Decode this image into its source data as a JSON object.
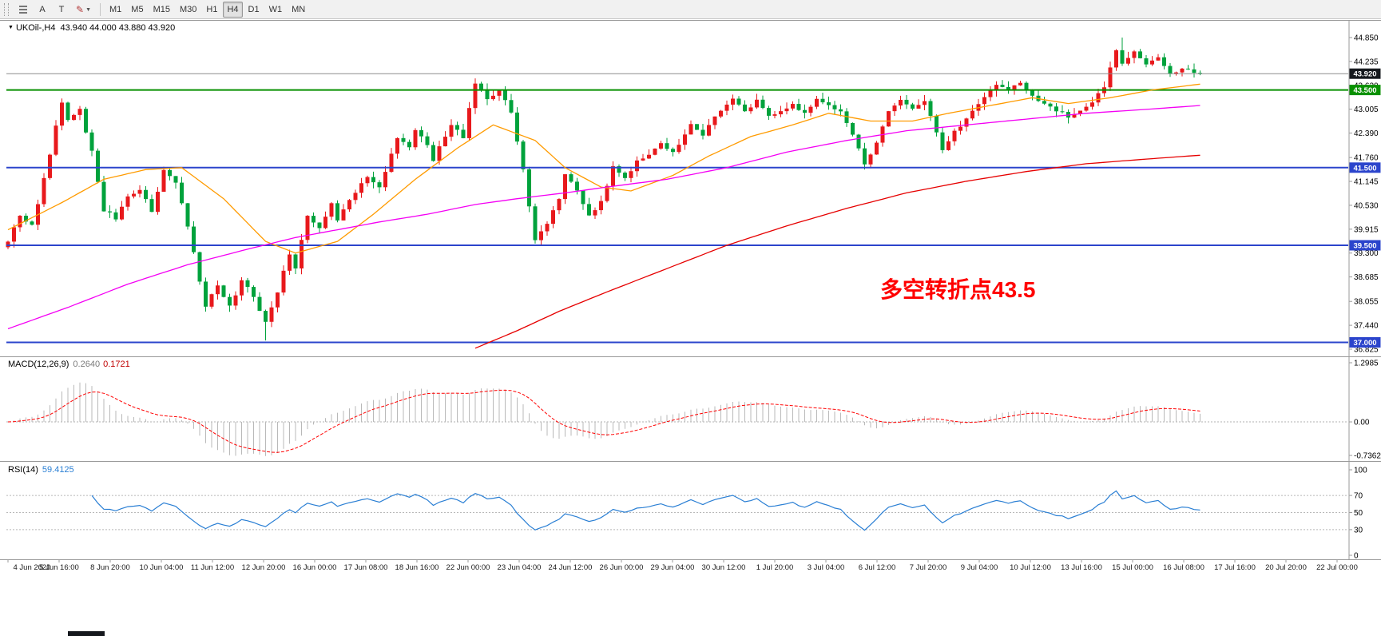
{
  "toolbar": {
    "buttons": {
      "a": "A",
      "t": "T"
    },
    "timeframes": [
      "M1",
      "M5",
      "M15",
      "M30",
      "H1",
      "H4",
      "D1",
      "W1",
      "MN"
    ],
    "active_timeframe": "H4"
  },
  "chart": {
    "title": "UKOil-,H4",
    "ohlc_text": "43.940 44.000 43.880 43.920",
    "annotation": {
      "text": "多空转折点43.5",
      "color": "#ff0000"
    }
  },
  "chart_data": {
    "type": "candlestick",
    "symbol": "UKOil",
    "timeframe": "H4",
    "current": {
      "open": 43.94,
      "high": 44.0,
      "low": 43.88,
      "close": 43.92
    },
    "colors": {
      "bull": "#e8191c",
      "bear": "#00a23c",
      "hist": "#b9b9b9",
      "macd_signal": "#ff0000",
      "rsi": "#2a7fd4"
    },
    "price_axis": {
      "ticks": [
        "44.850",
        "44.235",
        "43.620",
        "43.005",
        "42.390",
        "41.760",
        "41.145",
        "40.530",
        "39.915",
        "39.300",
        "38.685",
        "38.055",
        "37.440",
        "36.825"
      ]
    },
    "hlines": [
      {
        "price": 43.92,
        "color": "#8c8c8c",
        "width": 1,
        "badge": "43.920",
        "badge_bg": "#15181d"
      },
      {
        "price": 43.5,
        "color": "#089000",
        "width": 2,
        "badge": "43.500",
        "badge_bg": "#089000"
      },
      {
        "price": 41.5,
        "color": "#2b44cc",
        "width": 2,
        "badge": "41.500",
        "badge_bg": "#2b44cc"
      },
      {
        "price": 39.5,
        "color": "#2b44cc",
        "width": 2,
        "badge": "39.500",
        "badge_bg": "#2b44cc"
      },
      {
        "price": 37.0,
        "color": "#2b44cc",
        "width": 2,
        "badge": "37.000",
        "badge_bg": "#2b44cc"
      }
    ],
    "x_labels": [
      "4 Jun 2020",
      "5 Jun 16:00",
      "8 Jun 20:00",
      "10 Jun 04:00",
      "11 Jun 12:00",
      "12 Jun 20:00",
      "16 Jun 00:00",
      "17 Jun 08:00",
      "18 Jun 16:00",
      "22 Jun 00:00",
      "23 Jun 04:00",
      "24 Jun 12:00",
      "26 Jun 00:00",
      "29 Jun 04:00",
      "30 Jun 12:00",
      "1 Jul 20:00",
      "3 Jul 04:00",
      "6 Jul 12:00",
      "7 Jul 20:00",
      "9 Jul 04:00",
      "10 Jul 12:00",
      "13 Jul 16:00",
      "15 Jul 00:00",
      "16 Jul 08:00",
      "17 Jul 16:00",
      "20 Jul 20:00",
      "22 Jul 00:00"
    ],
    "n_candles": 200,
    "close_waypoints": [
      [
        0,
        39.6
      ],
      [
        2,
        40.3
      ],
      [
        4,
        40.0
      ],
      [
        6,
        41.2
      ],
      [
        9,
        43.2
      ],
      [
        10,
        42.7
      ],
      [
        12,
        43.0
      ],
      [
        14,
        41.9
      ],
      [
        16,
        40.4
      ],
      [
        18,
        40.2
      ],
      [
        20,
        40.8
      ],
      [
        22,
        40.9
      ],
      [
        24,
        40.4
      ],
      [
        26,
        41.4
      ],
      [
        28,
        41.1
      ],
      [
        29,
        40.6
      ],
      [
        31,
        39.3
      ],
      [
        33,
        37.9
      ],
      [
        35,
        38.5
      ],
      [
        37,
        37.9
      ],
      [
        39,
        38.6
      ],
      [
        41,
        38.2
      ],
      [
        43,
        37.5
      ],
      [
        45,
        38.3
      ],
      [
        47,
        39.3
      ],
      [
        48,
        38.9
      ],
      [
        50,
        40.3
      ],
      [
        52,
        39.9
      ],
      [
        54,
        40.6
      ],
      [
        55,
        40.1
      ],
      [
        57,
        40.7
      ],
      [
        60,
        41.3
      ],
      [
        62,
        41.0
      ],
      [
        65,
        42.3
      ],
      [
        67,
        42.0
      ],
      [
        68,
        42.5
      ],
      [
        70,
        42.1
      ],
      [
        71,
        41.7
      ],
      [
        74,
        42.6
      ],
      [
        76,
        42.3
      ],
      [
        78,
        43.7
      ],
      [
        80,
        43.3
      ],
      [
        82,
        43.5
      ],
      [
        84,
        42.9
      ],
      [
        86,
        41.5
      ],
      [
        88,
        39.6
      ],
      [
        90,
        40.1
      ],
      [
        92,
        40.7
      ],
      [
        93,
        41.3
      ],
      [
        95,
        40.9
      ],
      [
        97,
        40.3
      ],
      [
        99,
        40.6
      ],
      [
        101,
        41.5
      ],
      [
        103,
        41.2
      ],
      [
        105,
        41.7
      ],
      [
        107,
        41.8
      ],
      [
        109,
        42.1
      ],
      [
        111,
        41.9
      ],
      [
        114,
        42.6
      ],
      [
        116,
        42.3
      ],
      [
        118,
        42.8
      ],
      [
        121,
        43.3
      ],
      [
        123,
        43.0
      ],
      [
        125,
        43.2
      ],
      [
        127,
        42.8
      ],
      [
        129,
        43.0
      ],
      [
        131,
        43.1
      ],
      [
        133,
        42.9
      ],
      [
        135,
        43.3
      ],
      [
        137,
        43.1
      ],
      [
        139,
        42.9
      ],
      [
        141,
        42.3
      ],
      [
        143,
        41.6
      ],
      [
        145,
        42.1
      ],
      [
        147,
        43.0
      ],
      [
        149,
        43.2
      ],
      [
        151,
        43.0
      ],
      [
        153,
        43.2
      ],
      [
        156,
        42.0
      ],
      [
        158,
        42.4
      ],
      [
        160,
        42.8
      ],
      [
        163,
        43.3
      ],
      [
        165,
        43.6
      ],
      [
        167,
        43.5
      ],
      [
        169,
        43.7
      ],
      [
        172,
        43.2
      ],
      [
        174,
        43.1
      ],
      [
        177,
        42.8
      ],
      [
        179,
        43.0
      ],
      [
        181,
        43.2
      ],
      [
        183,
        43.6
      ],
      [
        185,
        44.5
      ],
      [
        186,
        44.2
      ],
      [
        188,
        44.45
      ],
      [
        190,
        44.15
      ],
      [
        192,
        44.3
      ],
      [
        194,
        43.95
      ],
      [
        196,
        44.05
      ],
      [
        199,
        43.92
      ]
    ],
    "extremes": {
      "high_index": 186,
      "high": 44.85,
      "low_index": 43,
      "low": 37.05
    },
    "ma_lines": [
      {
        "name": "ma-fast",
        "color": "#ff9b00",
        "waypoints": [
          [
            0,
            39.9
          ],
          [
            9,
            40.6
          ],
          [
            16,
            41.2
          ],
          [
            23,
            41.45
          ],
          [
            29,
            41.5
          ],
          [
            36,
            40.7
          ],
          [
            43,
            39.6
          ],
          [
            48,
            39.3
          ],
          [
            55,
            39.6
          ],
          [
            61,
            40.3
          ],
          [
            68,
            41.2
          ],
          [
            75,
            42.0
          ],
          [
            81,
            42.6
          ],
          [
            88,
            42.2
          ],
          [
            93,
            41.5
          ],
          [
            99,
            41.0
          ],
          [
            104,
            40.9
          ],
          [
            111,
            41.3
          ],
          [
            117,
            41.8
          ],
          [
            124,
            42.3
          ],
          [
            131,
            42.6
          ],
          [
            137,
            42.9
          ],
          [
            144,
            42.7
          ],
          [
            151,
            42.7
          ],
          [
            157,
            42.9
          ],
          [
            164,
            43.1
          ],
          [
            171,
            43.3
          ],
          [
            177,
            43.15
          ],
          [
            184,
            43.3
          ],
          [
            191,
            43.5
          ],
          [
            199,
            43.65
          ]
        ]
      },
      {
        "name": "ma-mid",
        "color": "#f400f4",
        "waypoints": [
          [
            0,
            37.35
          ],
          [
            10,
            37.9
          ],
          [
            20,
            38.5
          ],
          [
            30,
            39.0
          ],
          [
            40,
            39.4
          ],
          [
            48,
            39.7
          ],
          [
            55,
            39.9
          ],
          [
            62,
            40.1
          ],
          [
            70,
            40.3
          ],
          [
            78,
            40.55
          ],
          [
            85,
            40.7
          ],
          [
            93,
            40.85
          ],
          [
            100,
            41.0
          ],
          [
            110,
            41.2
          ],
          [
            120,
            41.5
          ],
          [
            130,
            41.9
          ],
          [
            140,
            42.2
          ],
          [
            150,
            42.45
          ],
          [
            160,
            42.6
          ],
          [
            170,
            42.75
          ],
          [
            180,
            42.9
          ],
          [
            190,
            43.0
          ],
          [
            199,
            43.1
          ]
        ]
      },
      {
        "name": "ma-slow",
        "color": "#e60000",
        "waypoints": [
          [
            78,
            36.85
          ],
          [
            85,
            37.3
          ],
          [
            92,
            37.8
          ],
          [
            100,
            38.3
          ],
          [
            110,
            38.9
          ],
          [
            120,
            39.5
          ],
          [
            130,
            40.0
          ],
          [
            140,
            40.45
          ],
          [
            150,
            40.85
          ],
          [
            160,
            41.15
          ],
          [
            170,
            41.4
          ],
          [
            180,
            41.6
          ],
          [
            190,
            41.72
          ],
          [
            199,
            41.82
          ]
        ]
      }
    ],
    "macd": {
      "label": "MACD(12,26,9)",
      "value_main": "0.2640",
      "value_signal": "0.1721",
      "params": [
        12,
        26,
        9
      ],
      "axis_ticks": [
        "1.2985",
        "0.00",
        "-0.7362"
      ]
    },
    "rsi": {
      "label": "RSI(14)",
      "value": "59.4125",
      "period": 14,
      "axis_ticks": [
        "100",
        "70",
        "50",
        "30",
        "0"
      ],
      "levels": [
        70,
        50,
        30
      ]
    }
  }
}
